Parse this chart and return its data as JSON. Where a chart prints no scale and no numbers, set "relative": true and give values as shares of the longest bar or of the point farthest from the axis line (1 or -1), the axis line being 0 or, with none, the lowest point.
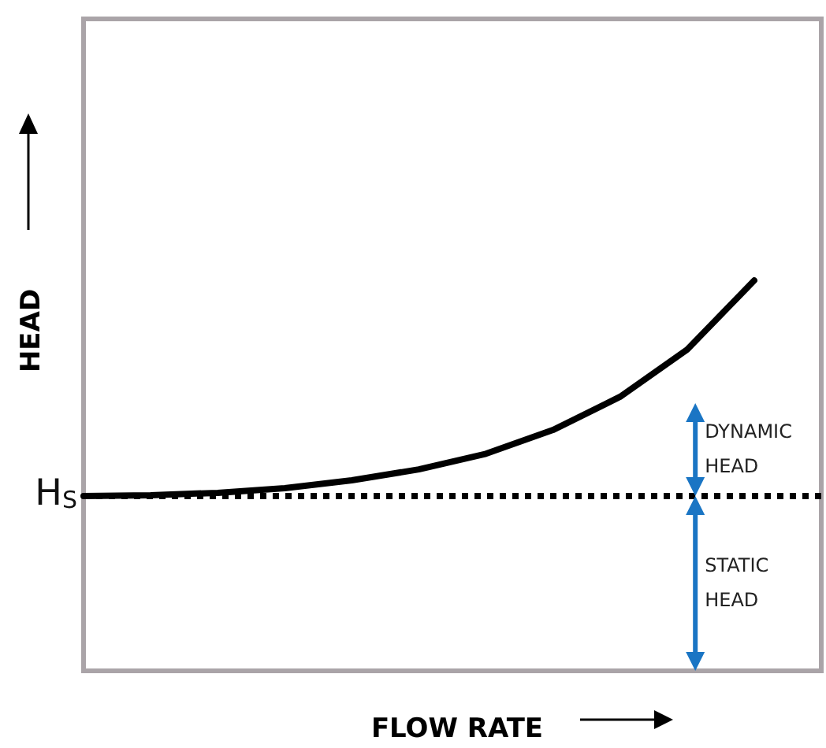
{
  "chart_data": {
    "type": "line",
    "relative": true,
    "xlabel": "FLOW RATE",
    "ylabel": "HEAD",
    "categories": [
      null,
      null,
      null,
      null,
      null,
      null,
      null,
      null,
      null,
      null,
      null,
      null
    ],
    "series": [
      {
        "color": "#000000",
        "values": [
          0.448,
          0.45,
          0.456,
          0.468,
          0.488,
          0.516,
          0.556,
          0.617,
          0.702,
          0.823,
          1,
          null
        ]
      }
    ],
    "marker": "none",
    "line_style": "solid",
    "ref_lines": [
      {
        "axis": "y",
        "value": 0.448,
        "label": "H$_{S}$",
        "line_style": "dotted",
        "color": "#000000"
      }
    ],
    "annotations": [
      "DYNAMIC HEAD",
      "STATIC HEAD"
    ]
  }
}
